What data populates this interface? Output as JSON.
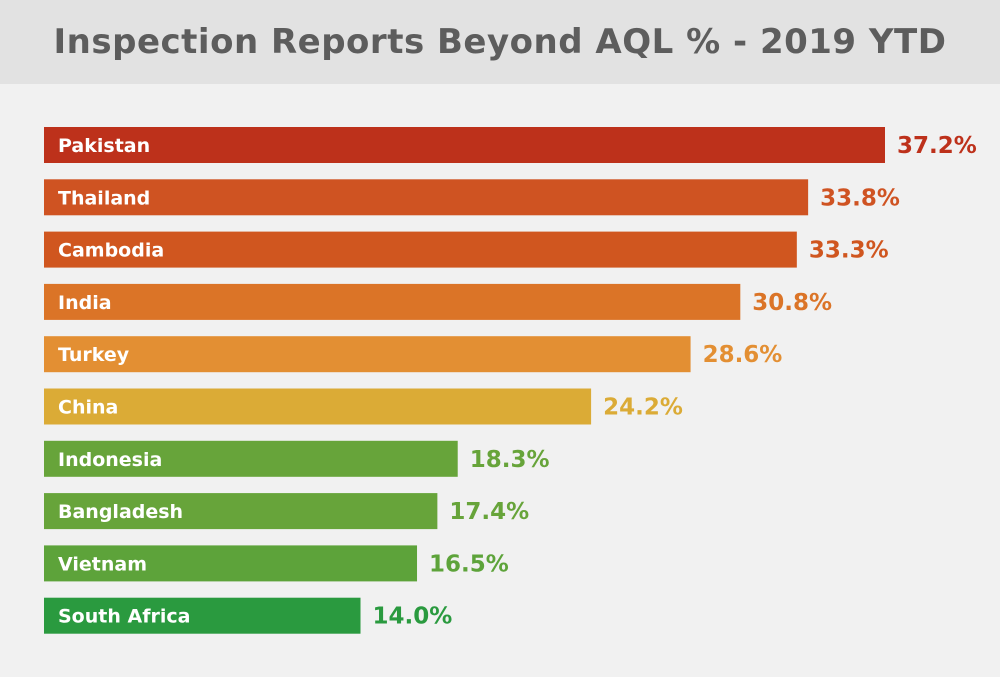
{
  "chart_data": {
    "type": "bar",
    "orientation": "horizontal",
    "title": "Inspection Reports Beyond AQL % - 2019 YTD",
    "categories": [
      "Pakistan",
      "Thailand",
      "Cambodia",
      "India",
      "Turkey",
      "China",
      "Indonesia",
      "Bangladesh",
      "Vietnam",
      "South Africa"
    ],
    "values": [
      37.2,
      33.8,
      33.3,
      30.8,
      28.6,
      24.2,
      18.3,
      17.4,
      16.5,
      14.0
    ],
    "value_labels": [
      "37.2%",
      "33.8%",
      "33.3%",
      "30.8%",
      "28.6%",
      "24.2%",
      "18.3%",
      "17.4%",
      "16.5%",
      "14.0%"
    ],
    "colors": [
      "#bd311b",
      "#cf5322",
      "#d0561f",
      "#db7427",
      "#e38f33",
      "#dbab36",
      "#67a43a",
      "#67a43a",
      "#5da33a",
      "#2a9a3f"
    ],
    "xlim": [
      0,
      37.2
    ],
    "grid": false,
    "legend": "none"
  }
}
